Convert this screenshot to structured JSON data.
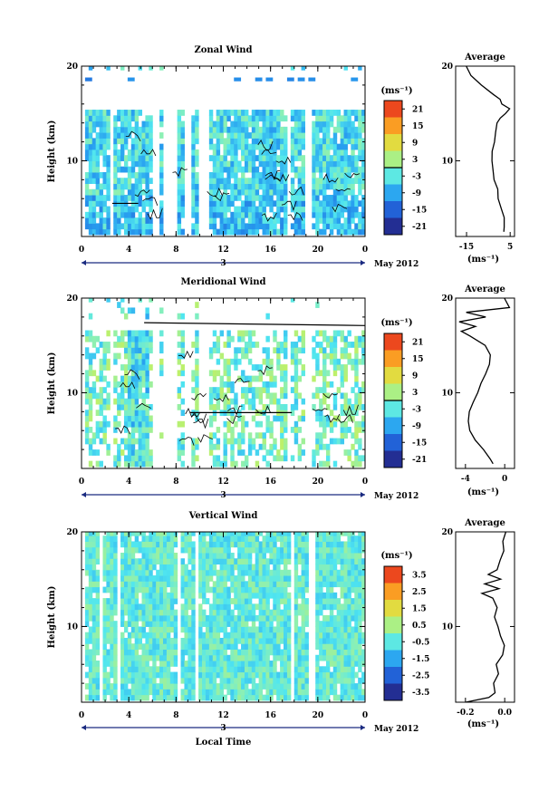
{
  "chart_data": [
    {
      "type": "heatmap",
      "title": "Zonal Wind",
      "ylabel": "Height (km)",
      "xlabel": "",
      "xlim": [
        0,
        24
      ],
      "ylim": [
        2,
        20
      ],
      "x_ticks": [
        "0",
        "4",
        "8",
        "12",
        "16",
        "20",
        "0"
      ],
      "y_ticks": [
        "10",
        "20"
      ],
      "date_label": "3",
      "month_label": "May 2012",
      "colorbar": {
        "unit_label": "(ms⁻¹)",
        "ticks": [
          "21",
          "15",
          "9",
          "3",
          "-3",
          "-9",
          "-15",
          "-21"
        ],
        "range": [
          -24,
          24
        ]
      },
      "profile": {
        "title": "Average",
        "xlabel": "(ms⁻¹)",
        "x_ticks": [
          "-15",
          "5"
        ],
        "xlim": [
          -20,
          7
        ],
        "y_ticks": [
          "10",
          "20"
        ],
        "heights": [
          2.5,
          3,
          4,
          5,
          6,
          7,
          8,
          9,
          10,
          11,
          12,
          13,
          14,
          14.5,
          15,
          15.5,
          16,
          16.5,
          17,
          18,
          19,
          20
        ],
        "values": [
          2.5,
          2.5,
          2.0,
          0.5,
          -0.5,
          -1.0,
          -2.0,
          -2.5,
          -3.0,
          -3.0,
          -2.5,
          -2.0,
          -1.0,
          0.5,
          3.0,
          4.5,
          1.0,
          0.0,
          -3.0,
          -8.0,
          -13.0,
          -15.0
        ]
      }
    },
    {
      "type": "heatmap",
      "title": "Meridional Wind",
      "ylabel": "Height (km)",
      "xlabel": "",
      "xlim": [
        0,
        24
      ],
      "ylim": [
        2,
        20
      ],
      "x_ticks": [
        "0",
        "4",
        "8",
        "12",
        "16",
        "20",
        "0"
      ],
      "y_ticks": [
        "10",
        "20"
      ],
      "date_label": "3",
      "month_label": "May 2012",
      "colorbar": {
        "unit_label": "(ms⁻¹)",
        "ticks": [
          "21",
          "15",
          "9",
          "3",
          "-3",
          "-9",
          "-15",
          "-21"
        ],
        "range": [
          -24,
          24
        ]
      },
      "profile": {
        "title": "Average",
        "xlabel": "(ms⁻¹)",
        "x_ticks": [
          "-4",
          "0"
        ],
        "xlim": [
          -5,
          1
        ],
        "y_ticks": [
          "10",
          "20"
        ],
        "heights": [
          2.5,
          3,
          4,
          5,
          6,
          7,
          8,
          9,
          10,
          11,
          12,
          13,
          14,
          15,
          16,
          16.5,
          17,
          17.5,
          18,
          18.5,
          19,
          20
        ],
        "values": [
          -1.2,
          -1.5,
          -2.2,
          -3.0,
          -3.5,
          -3.8,
          -3.6,
          -3.2,
          -2.8,
          -2.4,
          -2.0,
          -1.6,
          -1.5,
          -2.0,
          -3.5,
          -4.5,
          -3.0,
          -4.6,
          -2.0,
          -4.0,
          0.5,
          0.0
        ]
      }
    },
    {
      "type": "heatmap",
      "title": "Vertical Wind",
      "ylabel": "Height (km)",
      "xlabel": "Local Time",
      "xlim": [
        0,
        24
      ],
      "ylim": [
        2,
        20
      ],
      "x_ticks": [
        "0",
        "4",
        "8",
        "12",
        "16",
        "20",
        "0"
      ],
      "y_ticks": [
        "10",
        "20"
      ],
      "date_label": "3",
      "month_label": "May 2012",
      "colorbar": {
        "unit_label": "(ms⁻¹)",
        "ticks": [
          "3.5",
          "2.5",
          "1.5",
          "0.5",
          "-0.5",
          "-1.5",
          "-2.5",
          "-3.5"
        ],
        "range": [
          -4,
          4
        ]
      },
      "profile": {
        "title": "Average",
        "xlabel": "(ms⁻¹)",
        "x_ticks": [
          "-0.2",
          "0.0"
        ],
        "xlim": [
          -0.25,
          0.05
        ],
        "y_ticks": [
          "10",
          "20"
        ],
        "heights": [
          2,
          2.5,
          3,
          4,
          5,
          6,
          7,
          8,
          9,
          10,
          11,
          12,
          13,
          13.5,
          14,
          14.5,
          15,
          15.5,
          16,
          17,
          18,
          19,
          20
        ],
        "values": [
          -0.2,
          -0.08,
          -0.05,
          -0.06,
          -0.03,
          -0.04,
          -0.01,
          0.0,
          -0.02,
          -0.03,
          -0.05,
          -0.04,
          -0.06,
          -0.12,
          -0.03,
          -0.1,
          -0.02,
          -0.08,
          -0.04,
          -0.02,
          0.0,
          -0.01,
          0.01
        ]
      }
    }
  ]
}
